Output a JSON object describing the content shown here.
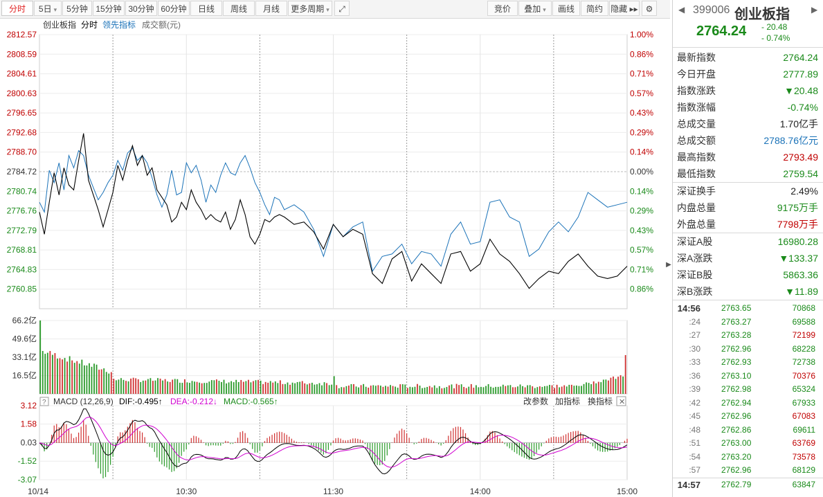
{
  "toolbar": {
    "left": [
      "分时",
      "5日",
      "5分钟",
      "15分钟",
      "30分钟",
      "60分钟",
      "日线",
      "周线",
      "月线",
      "更多周期"
    ],
    "right": [
      "竞价",
      "叠加",
      "画线",
      "简约",
      "隐藏"
    ]
  },
  "chart_data": {
    "type": "line",
    "legend": {
      "name": "创业板指",
      "mode": "分时",
      "lead": "领先指标",
      "vol": "成交额(元)"
    },
    "prev_close": 2784.72,
    "ylim": [
      2756.87,
      2812.57
    ],
    "price_ticks": [
      "2812.57",
      "2808.59",
      "2804.61",
      "2800.63",
      "2796.65",
      "2792.68",
      "2788.70",
      "2784.72",
      "2780.74",
      "2776.76",
      "2772.79",
      "2768.81",
      "2764.83",
      "2760.85"
    ],
    "pct_ticks": [
      "1.00%",
      "0.86%",
      "0.71%",
      "0.57%",
      "0.43%",
      "0.29%",
      "0.14%",
      "0.00%",
      "0.14%",
      "0.29%",
      "0.43%",
      "0.57%",
      "0.71%",
      "0.86%"
    ],
    "price_x": [
      0,
      2,
      4,
      6,
      8,
      10,
      12,
      14,
      16,
      18,
      20,
      22,
      24,
      26,
      28,
      30,
      32,
      34,
      36,
      38,
      40,
      42,
      44,
      46,
      48,
      50,
      52,
      54,
      56,
      58,
      60,
      62,
      64,
      66,
      68,
      70,
      72,
      74,
      76,
      78,
      80,
      82,
      84,
      86,
      88,
      90,
      92,
      94,
      96,
      98,
      100,
      104,
      108,
      112,
      116,
      120,
      124,
      128,
      132,
      136,
      140,
      144,
      148,
      152,
      156,
      160,
      164,
      168,
      172,
      176,
      180,
      184,
      188,
      192,
      196,
      200,
      204,
      208,
      212,
      216,
      220,
      224,
      228,
      232,
      236,
      240
    ],
    "price": [
      2776.5,
      2772.0,
      2778.5,
      2784.5,
      2780.0,
      2785.5,
      2782.0,
      2781.0,
      2787.0,
      2792.5,
      2783.0,
      2780.0,
      2777.0,
      2773.5,
      2777.0,
      2780.5,
      2786.0,
      2783.0,
      2787.0,
      2790.0,
      2786.0,
      2788.0,
      2784.0,
      2785.5,
      2781.0,
      2779.5,
      2778.0,
      2774.5,
      2775.5,
      2778.5,
      2777.0,
      2781.0,
      2778.5,
      2777.0,
      2775.0,
      2776.0,
      2775.0,
      2774.5,
      2776.5,
      2773.0,
      2775.0,
      2779.0,
      2776.0,
      2771.5,
      2770.0,
      2772.0,
      2775.0,
      2774.5,
      2775.5,
      2776.0,
      2775.5,
      2774.0,
      2774.5,
      2772.5,
      2769.0,
      2774.0,
      2771.5,
      2773.0,
      2772.0,
      2764.0,
      2762.0,
      2767.0,
      2768.5,
      2762.5,
      2766.0,
      2764.0,
      2762.0,
      2768.0,
      2768.5,
      2764.5,
      2766.0,
      2771.0,
      2768.0,
      2766.5,
      2764.0,
      2761.0,
      2763.0,
      2764.5,
      2764.0,
      2766.5,
      2768.0,
      2765.5,
      2763.5,
      2763.0,
      2763.5,
      2765.5
    ],
    "lead_x": [
      0,
      2,
      4,
      6,
      8,
      10,
      12,
      14,
      16,
      18,
      20,
      22,
      24,
      26,
      28,
      30,
      32,
      34,
      36,
      38,
      40,
      42,
      44,
      46,
      48,
      50,
      52,
      54,
      56,
      58,
      60,
      62,
      64,
      66,
      68,
      70,
      72,
      74,
      76,
      78,
      80,
      82,
      84,
      86,
      88,
      90,
      92,
      94,
      96,
      98,
      100,
      104,
      108,
      112,
      116,
      120,
      124,
      128,
      132,
      136,
      140,
      144,
      148,
      152,
      156,
      160,
      164,
      168,
      172,
      176,
      180,
      184,
      188,
      192,
      196,
      200,
      204,
      208,
      212,
      216,
      220,
      224,
      228,
      232,
      236,
      240
    ],
    "lead": [
      2778.5,
      2776.5,
      2785.0,
      2782.5,
      2786.5,
      2781.0,
      2788.0,
      2785.5,
      2789.0,
      2788.0,
      2784.0,
      2781.5,
      2779.0,
      2780.5,
      2782.5,
      2784.0,
      2787.0,
      2785.0,
      2788.5,
      2789.5,
      2787.0,
      2788.0,
      2786.5,
      2783.5,
      2780.0,
      2777.5,
      2780.0,
      2785.0,
      2780.0,
      2780.5,
      2786.5,
      2784.5,
      2786.0,
      2783.0,
      2778.5,
      2782.0,
      2780.5,
      2784.0,
      2786.5,
      2784.5,
      2784.0,
      2786.5,
      2788.0,
      2785.5,
      2782.5,
      2780.5,
      2778.0,
      2776.0,
      2779.5,
      2779.0,
      2777.0,
      2778.0,
      2776.5,
      2773.0,
      2767.5,
      2774.0,
      2771.5,
      2773.5,
      2774.5,
      2764.5,
      2767.5,
      2768.0,
      2770.0,
      2766.0,
      2768.5,
      2768.0,
      2765.5,
      2772.0,
      2774.5,
      2770.0,
      2770.5,
      2778.5,
      2779.0,
      2775.5,
      2774.5,
      2767.5,
      2769.0,
      2772.5,
      2774.5,
      2772.5,
      2775.5,
      2780.5,
      2779.0,
      2777.5,
      2778.0,
      2778.5
    ],
    "vol_ticks": [
      "66.2亿",
      "49.6亿",
      "33.1亿",
      "16.5亿"
    ],
    "vol_max": 66.2,
    "macd": {
      "params": "MACD (12,26,9)",
      "dif": "DIF:-0.495↑",
      "dea": "DEA:-0.212↓",
      "macd": "MACD:-0.565↑",
      "buttons": [
        "改参数",
        "加指标",
        "换指标"
      ],
      "ticks": [
        "3.12",
        "1.58",
        "0.03",
        "-1.52",
        "-3.07"
      ],
      "ylim": [
        -3.07,
        3.12
      ]
    },
    "x_ticks": [
      "10/14",
      "10:30",
      "11:30",
      "14:00",
      "15:00"
    ]
  },
  "side": {
    "code": "399006",
    "name": "创业板指",
    "price": "2764.24",
    "change": "- 20.48",
    "change_pct": "- 0.74%",
    "stats": [
      {
        "k": "最新指数",
        "v": "2764.24",
        "c": "g"
      },
      {
        "k": "今日开盘",
        "v": "2777.89",
        "c": "g"
      },
      {
        "k": "指数涨跌",
        "v": "▼20.48",
        "c": "g"
      },
      {
        "k": "指数涨幅",
        "v": "-0.74%",
        "c": "g"
      },
      {
        "k": "总成交量",
        "v": "1.70亿手",
        "c": "k2"
      },
      {
        "k": "总成交额",
        "v": "2788.76亿元",
        "c": "b"
      },
      {
        "k": "最高指数",
        "v": "2793.49",
        "c": "r"
      },
      {
        "k": "最低指数",
        "v": "2759.54",
        "c": "g"
      }
    ],
    "stats2": [
      {
        "k": "深证换手",
        "v": "2.49%",
        "c": "k2"
      },
      {
        "k": "内盘总量",
        "v": "9175万手",
        "c": "g"
      },
      {
        "k": "外盘总量",
        "v": "7798万手",
        "c": "r"
      }
    ],
    "stats3": [
      {
        "k": "深证A股",
        "v": "16980.28",
        "c": "g"
      },
      {
        "k": "深A涨跌",
        "v": "▼133.37",
        "c": "g"
      },
      {
        "k": "深证B股",
        "v": "5863.36",
        "c": "g"
      },
      {
        "k": "深B涨跌",
        "v": "▼11.89",
        "c": "g"
      }
    ],
    "ticks": [
      {
        "t": "14:56",
        "p": "2763.65",
        "v": "70868",
        "c": "g",
        "bold": true
      },
      {
        "t": ":24",
        "p": "2763.27",
        "v": "69588",
        "c": "g"
      },
      {
        "t": ":27",
        "p": "2763.28",
        "v": "72199",
        "c": "r"
      },
      {
        "t": ":30",
        "p": "2762.96",
        "v": "68228",
        "c": "g"
      },
      {
        "t": ":33",
        "p": "2762.93",
        "v": "72738",
        "c": "g"
      },
      {
        "t": ":36",
        "p": "2763.10",
        "v": "70376",
        "c": "r"
      },
      {
        "t": ":39",
        "p": "2762.98",
        "v": "65324",
        "c": "g"
      },
      {
        "t": ":42",
        "p": "2762.94",
        "v": "67933",
        "c": "g"
      },
      {
        "t": ":45",
        "p": "2762.96",
        "v": "67083",
        "c": "r"
      },
      {
        "t": ":48",
        "p": "2762.86",
        "v": "69611",
        "c": "g"
      },
      {
        "t": ":51",
        "p": "2763.00",
        "v": "63769",
        "c": "r"
      },
      {
        "t": ":54",
        "p": "2763.20",
        "v": "73578",
        "c": "r"
      },
      {
        "t": ":57",
        "p": "2762.96",
        "v": "68129",
        "c": "g"
      },
      {
        "t": "14:57",
        "p": "2762.79",
        "v": "63847",
        "c": "g",
        "bold": true
      }
    ]
  }
}
